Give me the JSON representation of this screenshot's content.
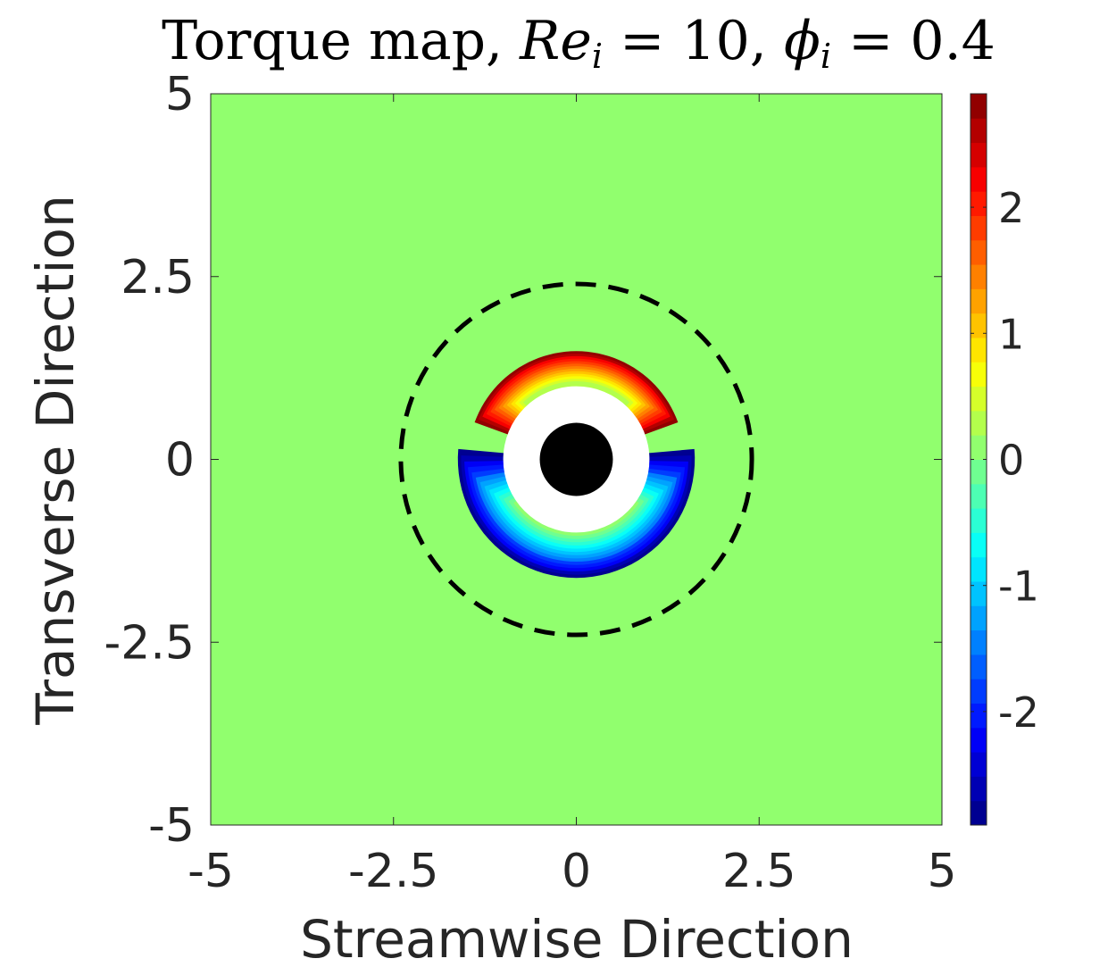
{
  "chart_data": {
    "type": "heatmap",
    "title": {
      "prefix": "Torque map, ",
      "re_symbol": "Re",
      "re_sub": "i",
      "re_value": " = 10, ",
      "phi_symbol": "ϕ",
      "phi_sub": "i",
      "phi_value": " = 0.4"
    },
    "xlabel": "Streamwise Direction",
    "ylabel": "Transverse Direction",
    "xlim": [
      -5,
      5
    ],
    "ylim": [
      -5,
      5
    ],
    "x_ticks": [
      -5,
      -2.5,
      0,
      2.5,
      5
    ],
    "x_tick_labels": [
      "-5",
      "-2.5",
      "0",
      "2.5",
      "5"
    ],
    "y_ticks": [
      -5,
      -2.5,
      0,
      2.5,
      5
    ],
    "y_tick_labels": [
      "-5",
      "-2.5",
      "0",
      "2.5",
      "5"
    ],
    "background_value": 0.15,
    "particle": {
      "center": [
        0,
        0
      ],
      "radius": 0.5,
      "color": "#000000"
    },
    "excluded_region": {
      "center": [
        0,
        0
      ],
      "radius": 1.0,
      "color": "#ffffff"
    },
    "dashed_circle": {
      "center": [
        0,
        0
      ],
      "radius": 2.4,
      "color": "#000000"
    },
    "lobes": [
      {
        "side": "upper",
        "x_range": [
          -1.1,
          1.1
        ],
        "y_range": [
          0.45,
          1.45
        ],
        "peak_value": 2.8,
        "angular_center_deg": 90
      },
      {
        "side": "lower",
        "x_range": [
          -1.35,
          1.35
        ],
        "y_range": [
          -1.6,
          0
        ],
        "peak_value": -2.8,
        "angular_center_deg": -90
      }
    ],
    "colorbar": {
      "levels": 30,
      "range": [
        -2.9,
        2.9
      ],
      "ticks": [
        -2,
        -1,
        0,
        1,
        2
      ],
      "tick_labels": [
        "-2",
        "-1",
        "0",
        "1",
        "2"
      ],
      "colormap": "jet"
    },
    "grid": false
  }
}
